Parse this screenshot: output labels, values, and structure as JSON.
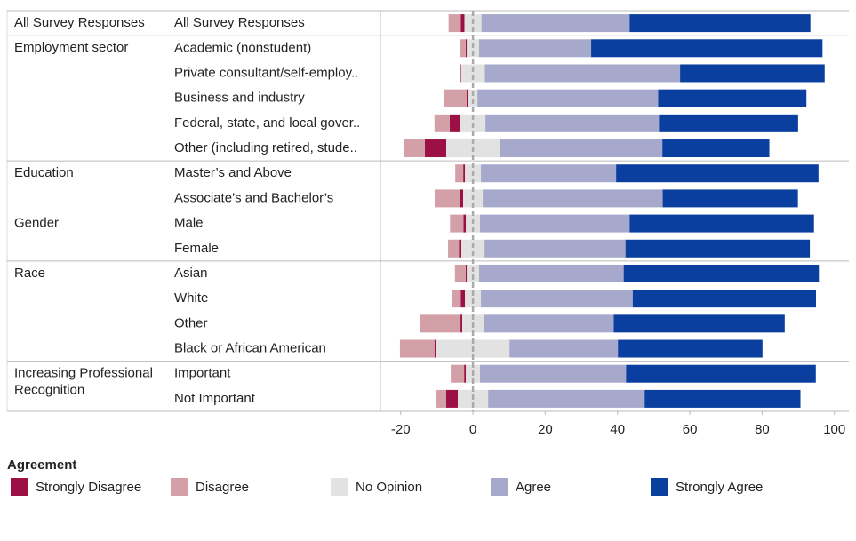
{
  "chart_data": {
    "type": "diverging-bar",
    "orientation": "horizontal",
    "groups": [
      {
        "label": "All Survey Responses",
        "categories": [
          "All Survey Responses"
        ]
      },
      {
        "label": "Employment sector",
        "categories": [
          "Academic (nonstudent)",
          "Private consultant/self-employ..",
          "Business and industry",
          "Federal, state, and local gover..",
          "Other (including retired, stude.."
        ]
      },
      {
        "label": "Education",
        "categories": [
          "Master’s and Above",
          "Associate’s and Bachelor’s"
        ]
      },
      {
        "label": "Gender",
        "categories": [
          "Male",
          "Female"
        ]
      },
      {
        "label": "Race",
        "categories": [
          "Asian",
          "White",
          "Other",
          "Black or African American"
        ]
      },
      {
        "label": "Increasing Professional Recognition",
        "categories": [
          "Important",
          "Not Important"
        ]
      }
    ],
    "series": [
      {
        "name": "Strongly Disagree",
        "color": "#9b1045",
        "side": "left",
        "values": [
          1,
          0.3,
          0.3,
          0.5,
          3,
          5.9,
          0.5,
          1,
          0.7,
          0.7,
          0.3,
          1.2,
          0.5,
          0.5,
          0.5,
          3.2
        ]
      },
      {
        "name": "Disagree",
        "color": "#d4a0a8",
        "side": "left",
        "values": [
          3.4,
          1.5,
          0,
          6.4,
          4.2,
          5.9,
          2.2,
          6.9,
          3.7,
          3,
          3,
          2.5,
          11.3,
          9.6,
          3.7,
          2.7
        ]
      },
      {
        "name": "No Opinion",
        "color": "#e2e2e2",
        "side": "center",
        "values": [
          4.7,
          3.4,
          6.6,
          2.5,
          6.9,
          14.8,
          4.4,
          5.4,
          3.9,
          6.4,
          3.4,
          4.4,
          5.9,
          20.2,
          3.9,
          8.4
        ]
      },
      {
        "name": "Agree",
        "color": "#a7a9cc",
        "side": "right",
        "values": [
          41,
          31,
          54,
          50,
          48,
          45,
          37.4,
          49.8,
          41.4,
          39,
          40,
          42,
          36,
          30,
          40.4,
          43.3
        ]
      },
      {
        "name": "Strongly Agree",
        "color": "#0a3fa0",
        "side": "right",
        "values": [
          50,
          64,
          40,
          41,
          38.5,
          29.6,
          56,
          37.4,
          51,
          51,
          54,
          50.7,
          47.3,
          40,
          52.5,
          43.1
        ]
      }
    ],
    "xlim": [
      -25.6,
      104
    ],
    "xticks": [
      -20,
      0,
      20,
      40,
      60,
      80,
      100
    ],
    "zero_line": true,
    "legend_title": "Agreement",
    "legend_position": "bottom"
  }
}
